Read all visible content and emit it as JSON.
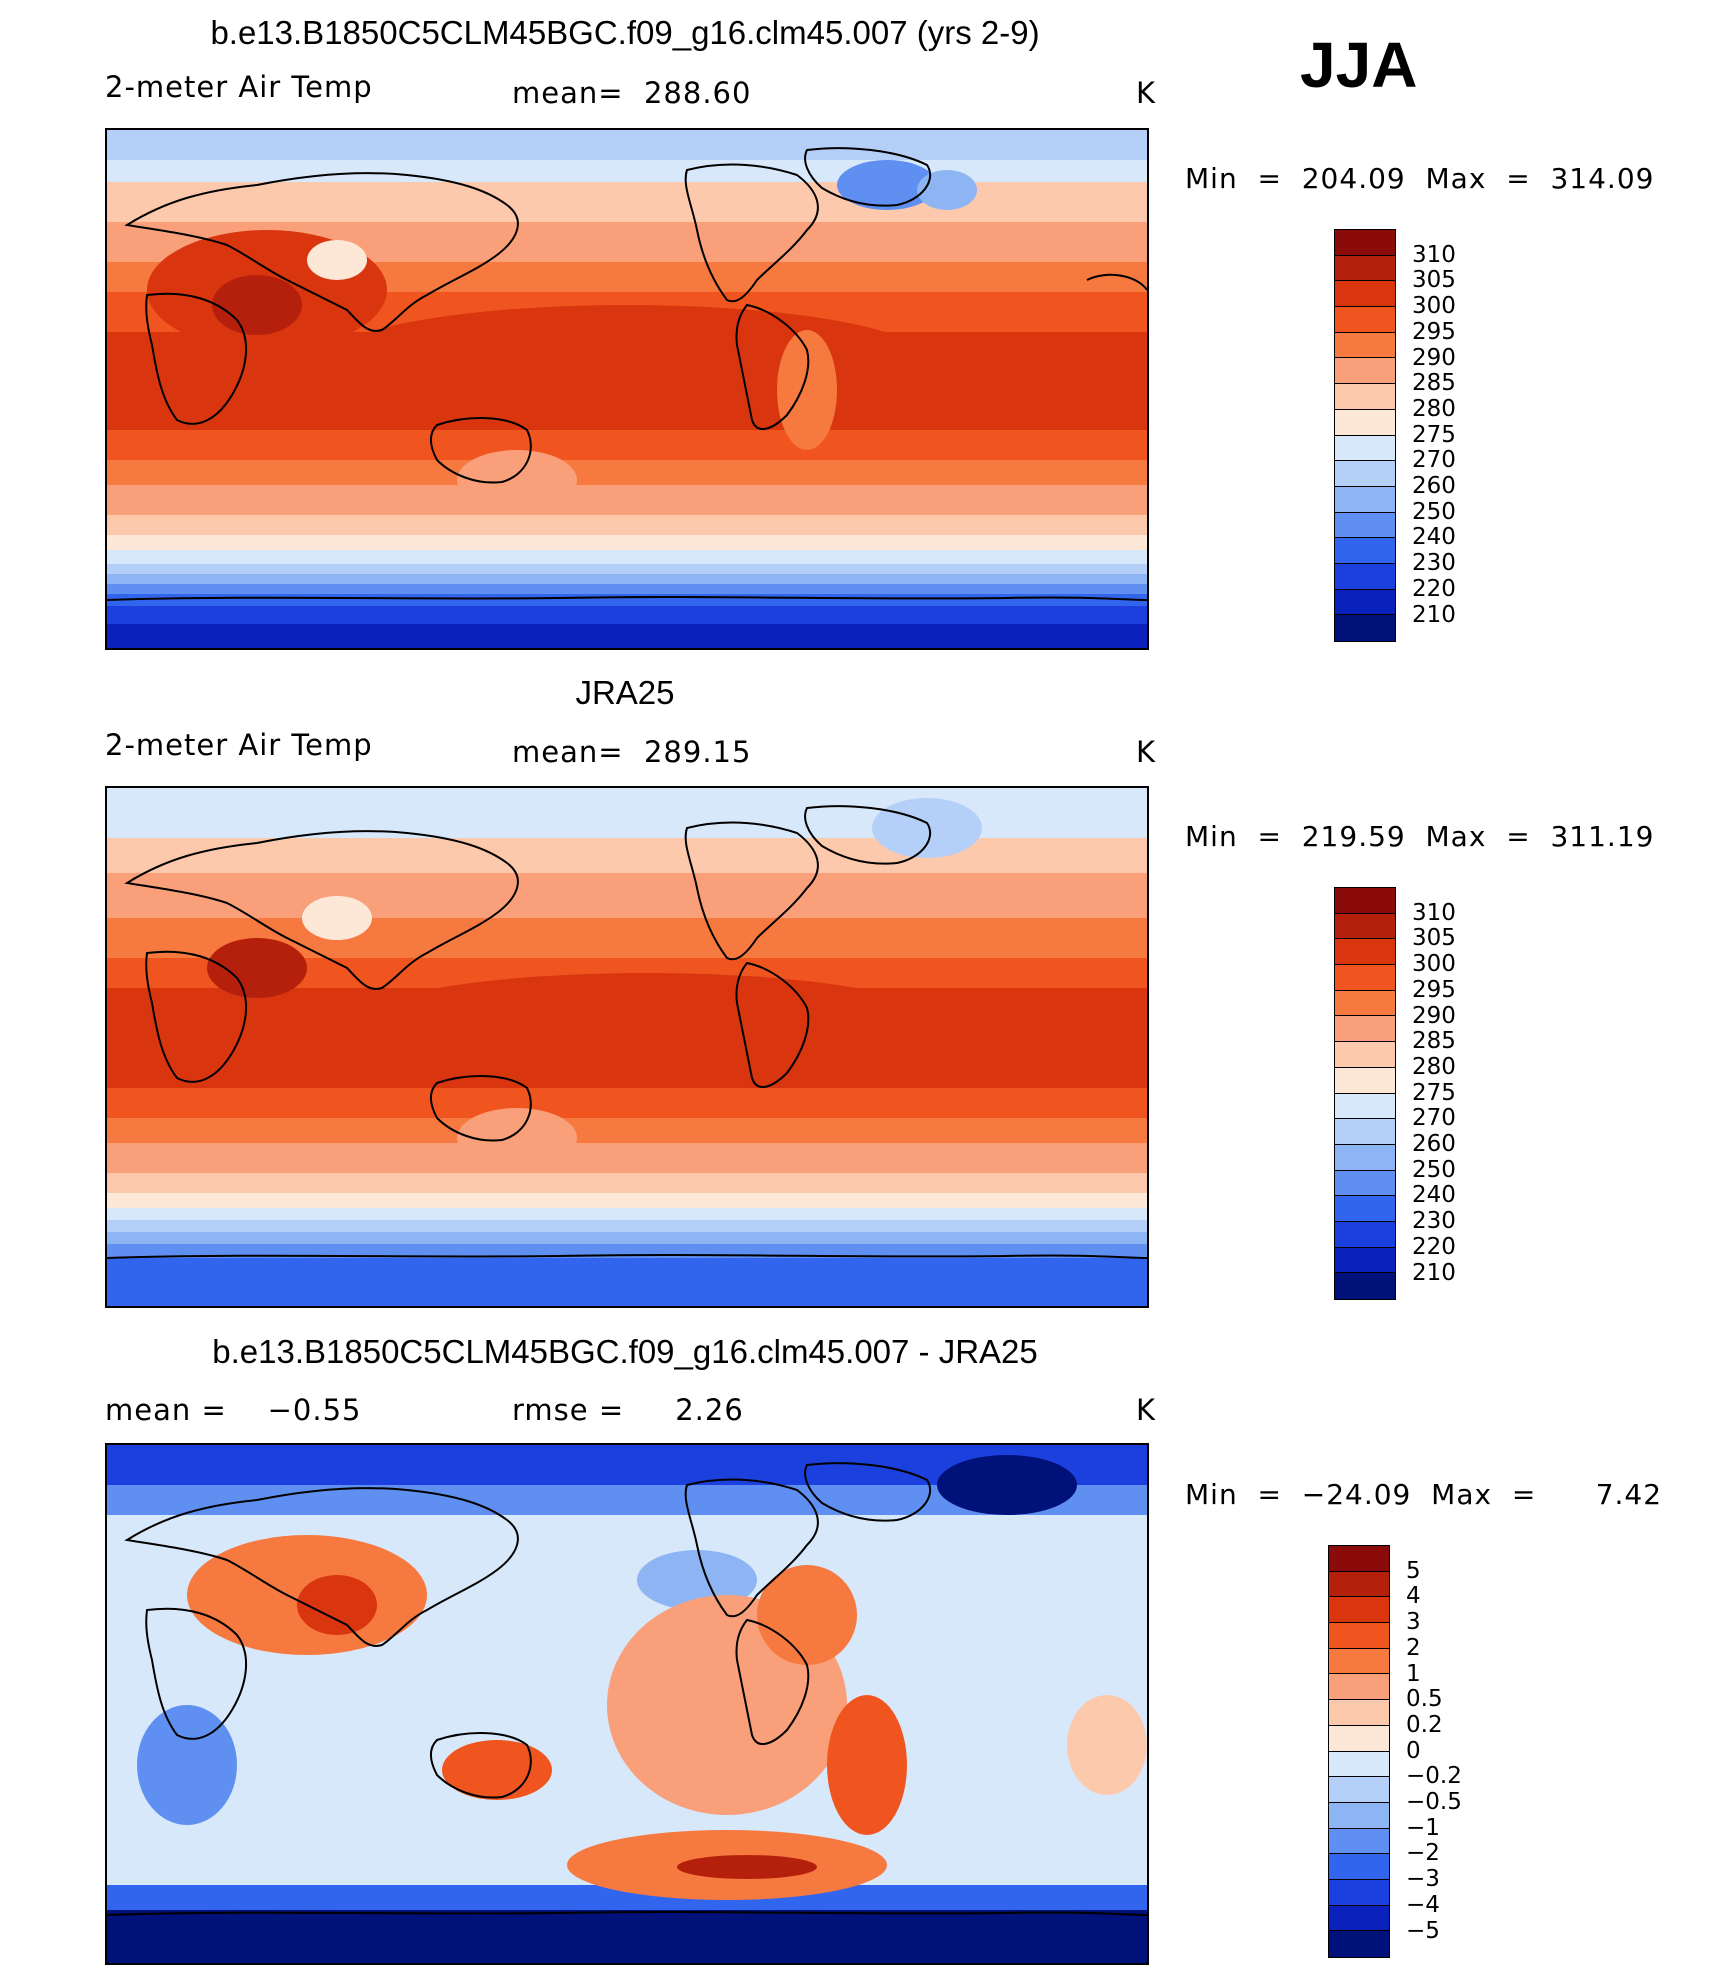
{
  "season": "JJA",
  "chart_data": [
    {
      "type": "heatmap",
      "title": "b.e13.B1850C5CLM45BGC.f09_g16.clm45.007 (yrs 2-9)",
      "variable": "2-meter Air Temp",
      "stat_text": "mean=  288.60",
      "units": "K",
      "minmax_text": "Min  =  204.09  Max  =  314.09",
      "min": 204.09,
      "max": 314.09,
      "mean": 288.6,
      "colorbar_levels": [
        "310",
        "305",
        "300",
        "295",
        "290",
        "285",
        "280",
        "275",
        "270",
        "260",
        "250",
        "240",
        "230",
        "220",
        "210"
      ],
      "colorbar_colors": [
        "#8b0a0a",
        "#b5200d",
        "#d9360f",
        "#f05520",
        "#f6793f",
        "#f9a07a",
        "#fcc9ad",
        "#fde8d8",
        "#d8e8fb",
        "#b4cff8",
        "#8db4f3",
        "#5f8ff0",
        "#3265ee",
        "#1b40dd",
        "#0a22bb",
        "#00117a"
      ],
      "xlabel": "",
      "ylabel": ""
    },
    {
      "type": "heatmap",
      "title": "JRA25",
      "variable": "2-meter Air Temp",
      "stat_text": "mean=  289.15",
      "units": "K",
      "minmax_text": "Min  =  219.59  Max  =  311.19",
      "min": 219.59,
      "max": 311.19,
      "mean": 289.15,
      "colorbar_levels": [
        "310",
        "305",
        "300",
        "295",
        "290",
        "285",
        "280",
        "275",
        "270",
        "260",
        "250",
        "240",
        "230",
        "220",
        "210"
      ],
      "colorbar_colors": [
        "#8b0a0a",
        "#b5200d",
        "#d9360f",
        "#f05520",
        "#f6793f",
        "#f9a07a",
        "#fcc9ad",
        "#fde8d8",
        "#d8e8fb",
        "#b4cff8",
        "#8db4f3",
        "#5f8ff0",
        "#3265ee",
        "#1b40dd",
        "#0a22bb",
        "#00117a"
      ],
      "xlabel": "",
      "ylabel": ""
    },
    {
      "type": "heatmap",
      "title": "b.e13.B1850C5CLM45BGC.f09_g16.clm45.007 - JRA25",
      "stat_left_text": "mean =    −0.55",
      "stat_text": "rmse =     2.26",
      "units": "K",
      "minmax_text": "Min  =  −24.09  Max  =      7.42",
      "min": -24.09,
      "max": 7.42,
      "mean": -0.55,
      "rmse": 2.26,
      "colorbar_levels": [
        "5",
        "4",
        "3",
        "2",
        "1",
        "0.5",
        "0.2",
        "0",
        "−0.2",
        "−0.5",
        "−1",
        "−2",
        "−3",
        "−4",
        "−5"
      ],
      "colorbar_colors": [
        "#8b0a0a",
        "#b5200d",
        "#d9360f",
        "#f05520",
        "#f6793f",
        "#f9a07a",
        "#fcc9ad",
        "#fde8d8",
        "#d8e8fb",
        "#b4cff8",
        "#8db4f3",
        "#5f8ff0",
        "#3265ee",
        "#1b40dd",
        "#0a22bb",
        "#00117a"
      ],
      "xlabel": "",
      "ylabel": ""
    }
  ]
}
